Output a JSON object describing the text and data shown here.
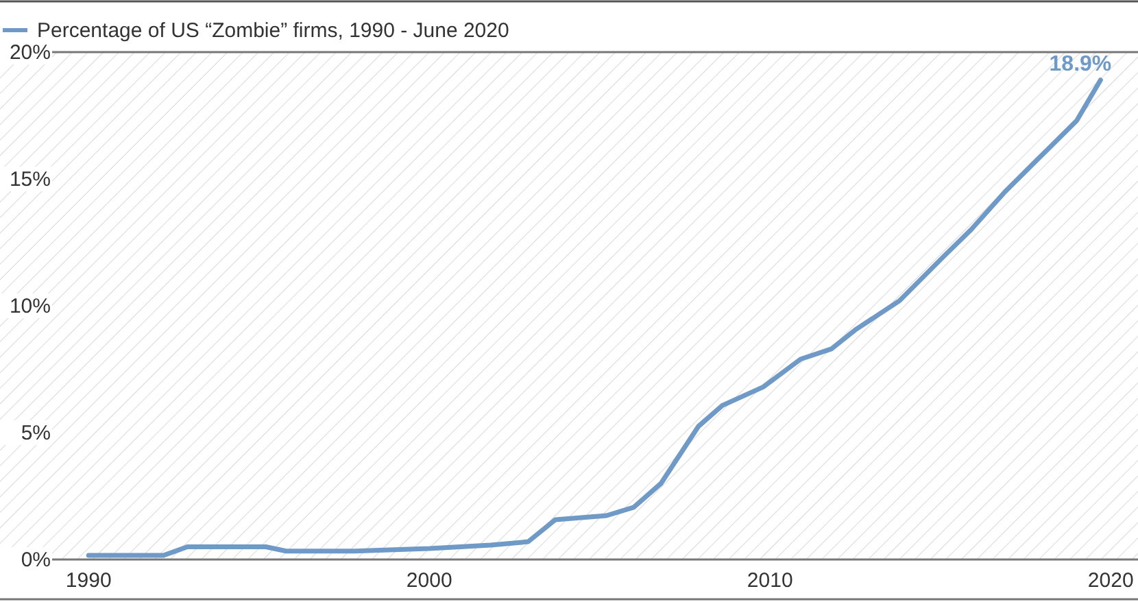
{
  "chart_data": {
    "type": "line",
    "x": [
      1990,
      1992.2,
      1992.9,
      1995.2,
      1995.8,
      1997.8,
      2000,
      2001.8,
      2002.9,
      2003.7,
      2005.2,
      2006,
      2006.8,
      2007.9,
      2008.6,
      2009.8,
      2010.4,
      2010.9,
      2011.8,
      2012.5,
      2013.8,
      2015.1,
      2015.9,
      2016.9,
      2017.8,
      2019,
      2019.7
    ],
    "series": [
      {
        "name": "Percentage of US “Zombie” firms, 1990 - June 2020",
        "color": "#6f9ac7",
        "values": [
          0.16,
          0.16,
          0.5,
          0.5,
          0.33,
          0.33,
          0.43,
          0.57,
          0.7,
          1.57,
          1.73,
          2.06,
          3.0,
          5.25,
          6.07,
          6.8,
          7.4,
          7.9,
          8.3,
          9.05,
          10.2,
          11.95,
          13.0,
          14.5,
          15.7,
          17.3,
          18.9
        ]
      }
    ],
    "xlim": [
      1987.4,
      2020.8
    ],
    "xticks": [
      1990,
      2000,
      2010,
      2020
    ],
    "ylim": [
      0,
      20
    ],
    "yticks": [
      {
        "value": 0,
        "label": "0%"
      },
      {
        "value": 5,
        "label": "5%"
      },
      {
        "value": 10,
        "label": "10%"
      },
      {
        "value": 15,
        "label": "15%"
      },
      {
        "value": 20,
        "label": "20%"
      }
    ],
    "annotations": [
      {
        "text": "18.9%",
        "x": 2019.7,
        "y": 18.9
      }
    ],
    "legend": "top left",
    "grid": false,
    "marker": "none",
    "line_style": "solid"
  }
}
